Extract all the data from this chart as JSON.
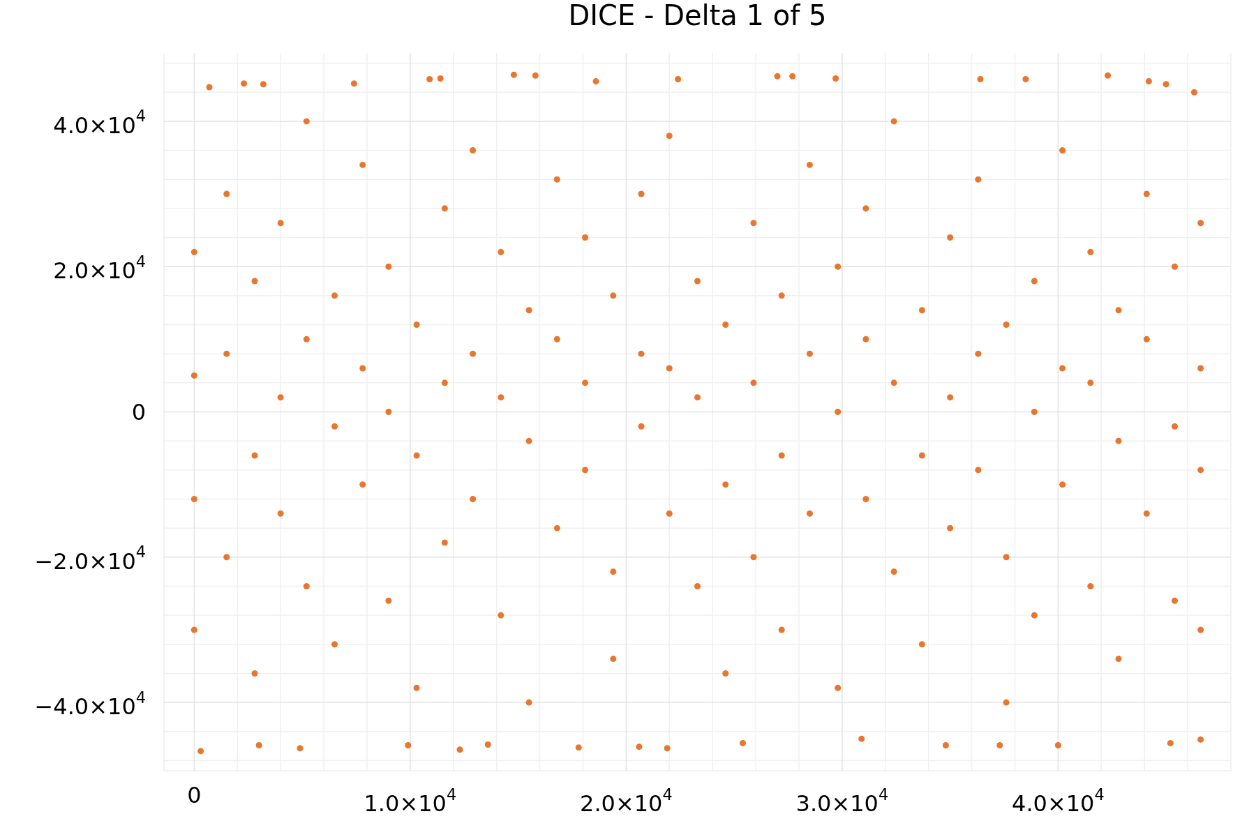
{
  "chart_data": {
    "type": "scatter",
    "title": "DICE - Delta 1 of 5",
    "x": [
      700,
      2300,
      3200,
      7400,
      10900,
      11400,
      14800,
      15800,
      18600,
      22400,
      27000,
      27700,
      29700,
      36400,
      38500,
      42300,
      44200,
      45000,
      46300,
      300,
      3000,
      4900,
      9900,
      12300,
      13600,
      17800,
      20600,
      21900,
      25400,
      30900,
      34800,
      37300,
      40000,
      45200,
      46600,
      0,
      0,
      0,
      0,
      1500,
      1500,
      1500,
      2800,
      2800,
      2800,
      4000,
      4000,
      4000,
      5200,
      5200,
      5200,
      6500,
      6500,
      6500,
      7800,
      7800,
      7800,
      9000,
      9000,
      9000,
      10300,
      10300,
      10300,
      11600,
      11600,
      11600,
      12900,
      12900,
      12900,
      14200,
      14200,
      14200,
      15500,
      15500,
      15500,
      16800,
      16800,
      16800,
      18100,
      18100,
      18100,
      19400,
      19400,
      19400,
      20700,
      20700,
      20700,
      22000,
      22000,
      22000,
      23300,
      23300,
      23300,
      24600,
      24600,
      24600,
      25900,
      25900,
      25900,
      27200,
      27200,
      27200,
      28500,
      28500,
      28500,
      29800,
      29800,
      29800,
      31100,
      31100,
      31100,
      32400,
      32400,
      32400,
      33700,
      33700,
      33700,
      35000,
      35000,
      35000,
      36300,
      36300,
      36300,
      37600,
      37600,
      37600,
      38900,
      38900,
      38900,
      40200,
      40200,
      40200,
      41500,
      41500,
      41500,
      42800,
      42800,
      42800,
      44100,
      44100,
      44100,
      45400,
      45400,
      45400,
      46600,
      46600,
      46600,
      46600
    ],
    "values": [
      44700,
      45200,
      45100,
      45200,
      45800,
      45900,
      46400,
      46300,
      45500,
      45800,
      46200,
      46200,
      45900,
      45800,
      45800,
      46300,
      45500,
      45100,
      44000,
      -46700,
      -45900,
      -46300,
      -45900,
      -46500,
      -45800,
      -46200,
      -46100,
      -46300,
      -45600,
      -45000,
      -45900,
      -45900,
      -45900,
      -45600,
      -45100,
      5000,
      -12000,
      22000,
      -30000,
      8000,
      -20000,
      30000,
      -6000,
      18000,
      -36000,
      2000,
      -14000,
      26000,
      -24000,
      10000,
      40000,
      -2000,
      16000,
      -32000,
      6000,
      -10000,
      34000,
      0,
      20000,
      -26000,
      12000,
      -6000,
      -38000,
      4000,
      28000,
      -18000,
      -12000,
      8000,
      36000,
      2000,
      -28000,
      22000,
      -4000,
      14000,
      -40000,
      10000,
      -16000,
      32000,
      -8000,
      4000,
      24000,
      16000,
      -22000,
      -34000,
      -2000,
      30000,
      8000,
      -14000,
      6000,
      38000,
      2000,
      -24000,
      18000,
      -10000,
      12000,
      -36000,
      4000,
      26000,
      -20000,
      -6000,
      16000,
      -30000,
      8000,
      -14000,
      34000,
      0,
      20000,
      -38000,
      -12000,
      10000,
      28000,
      4000,
      -22000,
      40000,
      -6000,
      14000,
      -32000,
      2000,
      24000,
      -16000,
      -8000,
      8000,
      32000,
      12000,
      -20000,
      -40000,
      0,
      18000,
      -28000,
      -10000,
      6000,
      36000,
      4000,
      -24000,
      22000,
      -4000,
      14000,
      -34000,
      10000,
      -14000,
      30000,
      -2000,
      20000,
      -26000,
      6000,
      -8000,
      26000,
      -30000
    ],
    "color": "#e8762f",
    "marker": "circle",
    "grid": true,
    "xlim": [
      -1400,
      48000
    ],
    "ylim": [
      -49400,
      49400
    ],
    "xticks": [
      0,
      {
        "value": 2000,
        "label": null
      },
      {
        "value": 4000,
        "label": null
      },
      {
        "value": 6000,
        "label": null
      },
      {
        "value": 8000,
        "label": null
      },
      {
        "value": 10000,
        "label": "1.0×10$^{4}$"
      },
      {
        "value": 12000,
        "label": null
      },
      {
        "value": 14000,
        "label": null
      },
      {
        "value": 16000,
        "label": null
      },
      {
        "value": 18000,
        "label": null
      },
      {
        "value": 20000,
        "label": "2.0×10$^{4}$"
      },
      {
        "value": 22000,
        "label": null
      },
      {
        "value": 24000,
        "label": null
      },
      {
        "value": 26000,
        "label": null
      },
      {
        "value": 28000,
        "label": null
      },
      {
        "value": 30000,
        "label": "3.0×10$^{4}$"
      },
      {
        "value": 32000,
        "label": null
      },
      {
        "value": 34000,
        "label": null
      },
      {
        "value": 36000,
        "label": null
      },
      {
        "value": 38000,
        "label": null
      },
      {
        "value": 40000,
        "label": "4.0×10$^{4}$"
      },
      {
        "value": 42000,
        "label": null
      },
      {
        "value": 44000,
        "label": null
      },
      {
        "value": 46000,
        "label": null
      },
      {
        "value": 48000,
        "label": null
      }
    ],
    "yticks": [
      {
        "value": -48000,
        "label": null
      },
      {
        "value": -44000,
        "label": null
      },
      {
        "value": -40000,
        "label": "−4.0×10$^{4}$"
      },
      {
        "value": -36000,
        "label": null
      },
      {
        "value": -32000,
        "label": null
      },
      {
        "value": -28000,
        "label": null
      },
      {
        "value": -24000,
        "label": null
      },
      {
        "value": -20000,
        "label": "−2.0×10$^{4}$"
      },
      {
        "value": -16000,
        "label": null
      },
      {
        "value": -12000,
        "label": null
      },
      {
        "value": -8000,
        "label": null
      },
      {
        "value": -4000,
        "label": null
      },
      0,
      {
        "value": 4000,
        "label": null
      },
      {
        "value": 8000,
        "label": null
      },
      {
        "value": 12000,
        "label": null
      },
      {
        "value": 16000,
        "label": null
      },
      {
        "value": 20000,
        "label": "2.0×10$^{4}$"
      },
      {
        "value": 24000,
        "label": null
      },
      {
        "value": 28000,
        "label": null
      },
      {
        "value": 32000,
        "label": null
      },
      {
        "value": 36000,
        "label": null
      },
      {
        "value": 40000,
        "label": "4.0×10$^{4}$"
      },
      {
        "value": 44000,
        "label": null
      },
      {
        "value": 48000,
        "label": null
      }
    ]
  }
}
